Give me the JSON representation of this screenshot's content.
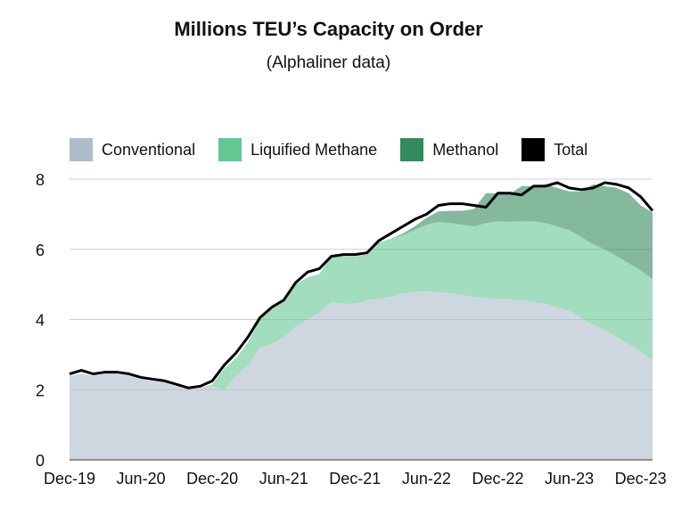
{
  "chart_data": {
    "type": "area",
    "title": "Millions TEU’s Capacity on Order",
    "subtitle": "(Alphaliner data)",
    "xlabel": "",
    "ylabel": "",
    "ylim": [
      0,
      8
    ],
    "y_ticks": [
      "0",
      "2",
      "4",
      "6",
      "8"
    ],
    "x_tick_labels": [
      "Dec-19",
      "Jun-20",
      "Dec-20",
      "Jun-21",
      "Dec-21",
      "Jun-22",
      "Dec-22",
      "Jun-23",
      "Dec-23"
    ],
    "grid": "horizontal",
    "legend_placement": "top",
    "x": [
      "Dec-19",
      "Jan-20",
      "Feb-20",
      "Mar-20",
      "Apr-20",
      "May-20",
      "Jun-20",
      "Jul-20",
      "Aug-20",
      "Sep-20",
      "Oct-20",
      "Nov-20",
      "Dec-20",
      "Jan-21",
      "Feb-21",
      "Mar-21",
      "Apr-21",
      "May-21",
      "Jun-21",
      "Jul-21",
      "Aug-21",
      "Sep-21",
      "Oct-21",
      "Nov-21",
      "Dec-21",
      "Jan-22",
      "Feb-22",
      "Mar-22",
      "Apr-22",
      "May-22",
      "Jun-22",
      "Jul-22",
      "Aug-22",
      "Sep-22",
      "Oct-22",
      "Nov-22",
      "Dec-22",
      "Jan-23",
      "Feb-23",
      "Mar-23",
      "Apr-23",
      "May-23",
      "Jun-23",
      "Jul-23",
      "Aug-23",
      "Sep-23",
      "Oct-23",
      "Nov-23",
      "Dec-23",
      "Jan-24"
    ],
    "series": [
      {
        "name": "Conventional",
        "color": "#aebdcc",
        "values": [
          2.4,
          2.45,
          2.4,
          2.45,
          2.45,
          2.4,
          2.3,
          2.25,
          2.2,
          2.1,
          2.0,
          2.05,
          2.1,
          2.0,
          2.4,
          2.7,
          3.2,
          3.3,
          3.5,
          3.8,
          4.0,
          4.2,
          4.5,
          4.45,
          4.45,
          4.55,
          4.6,
          4.65,
          4.75,
          4.8,
          4.8,
          4.78,
          4.75,
          4.7,
          4.65,
          4.6,
          4.6,
          4.58,
          4.55,
          4.5,
          4.45,
          4.35,
          4.25,
          4.05,
          3.85,
          3.7,
          3.5,
          3.3,
          3.1,
          2.85
        ]
      },
      {
        "name": "Liquified Methane",
        "color": "#63c792",
        "values": [
          0,
          0,
          0,
          0,
          0,
          0,
          0,
          0,
          0,
          0,
          0,
          0,
          0.05,
          0.6,
          0.5,
          0.65,
          0.8,
          1.0,
          1.0,
          1.2,
          1.2,
          1.1,
          1.3,
          1.35,
          1.35,
          1.3,
          1.6,
          1.65,
          1.65,
          1.75,
          1.9,
          2.0,
          2.0,
          2.0,
          2.0,
          2.15,
          2.2,
          2.2,
          2.25,
          2.3,
          2.3,
          2.3,
          2.3,
          2.3,
          2.3,
          2.3,
          2.3,
          2.3,
          2.3,
          2.3
        ]
      },
      {
        "name": "Methanol",
        "color": "#338a5c",
        "values": [
          0,
          0,
          0,
          0,
          0,
          0,
          0,
          0,
          0,
          0,
          0,
          0,
          0,
          0,
          0,
          0,
          0,
          0,
          0,
          0,
          0,
          0,
          0,
          0,
          0,
          0,
          0,
          0,
          0.05,
          0.1,
          0.2,
          0.3,
          0.35,
          0.4,
          0.5,
          0.85,
          0.8,
          0.8,
          1.0,
          1.0,
          1.1,
          1.1,
          1.1,
          1.3,
          1.7,
          1.8,
          1.95,
          2.0,
          1.85,
          1.9
        ]
      }
    ],
    "total": {
      "name": "Total",
      "color": "#000000",
      "values": [
        2.45,
        2.55,
        2.45,
        2.5,
        2.5,
        2.45,
        2.35,
        2.3,
        2.25,
        2.15,
        2.05,
        2.1,
        2.25,
        2.7,
        3.05,
        3.5,
        4.05,
        4.35,
        4.55,
        5.05,
        5.35,
        5.45,
        5.8,
        5.85,
        5.85,
        5.9,
        6.25,
        6.45,
        6.65,
        6.85,
        7.0,
        7.25,
        7.3,
        7.3,
        7.25,
        7.2,
        7.6,
        7.6,
        7.55,
        7.8,
        7.8,
        7.9,
        7.75,
        7.7,
        7.75,
        7.9,
        7.85,
        7.75,
        7.5,
        7.1
      ]
    }
  }
}
